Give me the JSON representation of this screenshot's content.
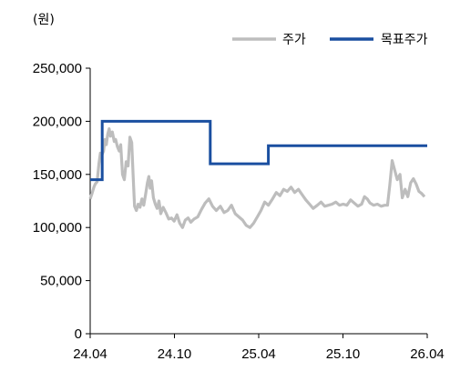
{
  "chart_data": {
    "type": "line",
    "title": "",
    "unit_label": "(원)",
    "xlabel": "",
    "ylabel": "",
    "x_ticks": [
      "24.04",
      "24.10",
      "25.04",
      "25.10",
      "26.04"
    ],
    "x_range": [
      "2024-04-01",
      "2026-04-01"
    ],
    "y_ticks": [
      "0",
      "50,000",
      "100,000",
      "150,000",
      "200,000",
      "250,000"
    ],
    "ylim": [
      0,
      250000
    ],
    "grid": false,
    "legend_position": "top-right",
    "series": [
      {
        "name": "주가",
        "color": "#bdbdbd",
        "points": [
          [
            "2024-04-01",
            127000
          ],
          [
            "2024-04-05",
            132000
          ],
          [
            "2024-04-09",
            138000
          ],
          [
            "2024-04-12",
            141000
          ],
          [
            "2024-04-16",
            143000
          ],
          [
            "2024-04-20",
            160000
          ],
          [
            "2024-04-23",
            170000
          ],
          [
            "2024-04-26",
            168000
          ],
          [
            "2024-04-30",
            172000
          ],
          [
            "2024-05-03",
            183000
          ],
          [
            "2024-05-06",
            178000
          ],
          [
            "2024-05-09",
            188000
          ],
          [
            "2024-05-12",
            193000
          ],
          [
            "2024-05-15",
            186000
          ],
          [
            "2024-05-19",
            190000
          ],
          [
            "2024-05-23",
            181000
          ],
          [
            "2024-05-26",
            183000
          ],
          [
            "2024-05-30",
            176000
          ],
          [
            "2024-06-03",
            172000
          ],
          [
            "2024-06-06",
            178000
          ],
          [
            "2024-06-10",
            150000
          ],
          [
            "2024-06-14",
            145000
          ],
          [
            "2024-06-18",
            162000
          ],
          [
            "2024-06-22",
            158000
          ],
          [
            "2024-06-26",
            185000
          ],
          [
            "2024-06-30",
            180000
          ],
          [
            "2024-07-03",
            150000
          ],
          [
            "2024-07-06",
            120000
          ],
          [
            "2024-07-10",
            116000
          ],
          [
            "2024-07-14",
            122000
          ],
          [
            "2024-07-18",
            119000
          ],
          [
            "2024-07-22",
            127000
          ],
          [
            "2024-07-26",
            121000
          ],
          [
            "2024-07-30",
            131000
          ],
          [
            "2024-08-03",
            142000
          ],
          [
            "2024-08-06",
            148000
          ],
          [
            "2024-08-09",
            137000
          ],
          [
            "2024-08-12",
            144000
          ],
          [
            "2024-08-16",
            128000
          ],
          [
            "2024-08-20",
            122000
          ],
          [
            "2024-08-24",
            118000
          ],
          [
            "2024-08-28",
            125000
          ],
          [
            "2024-09-01",
            113000
          ],
          [
            "2024-09-06",
            119000
          ],
          [
            "2024-09-12",
            114000
          ],
          [
            "2024-09-18",
            108000
          ],
          [
            "2024-09-24",
            109000
          ],
          [
            "2024-09-30",
            106000
          ],
          [
            "2024-10-06",
            112000
          ],
          [
            "2024-10-12",
            104000
          ],
          [
            "2024-10-18",
            100000
          ],
          [
            "2024-10-24",
            107000
          ],
          [
            "2024-10-30",
            109000
          ],
          [
            "2024-11-05",
            105000
          ],
          [
            "2024-11-12",
            108000
          ],
          [
            "2024-11-20",
            110000
          ],
          [
            "2024-11-28",
            117000
          ],
          [
            "2024-12-06",
            123000
          ],
          [
            "2024-12-14",
            127000
          ],
          [
            "2024-12-22",
            120000
          ],
          [
            "2024-12-30",
            116000
          ],
          [
            "2025-01-08",
            120000
          ],
          [
            "2025-01-16",
            114000
          ],
          [
            "2025-01-24",
            116000
          ],
          [
            "2025-02-01",
            121000
          ],
          [
            "2025-02-09",
            113000
          ],
          [
            "2025-02-17",
            110000
          ],
          [
            "2025-02-25",
            107000
          ],
          [
            "2025-03-05",
            102000
          ],
          [
            "2025-03-13",
            100000
          ],
          [
            "2025-03-21",
            104000
          ],
          [
            "2025-03-29",
            110000
          ],
          [
            "2025-04-06",
            116000
          ],
          [
            "2025-04-14",
            124000
          ],
          [
            "2025-04-22",
            121000
          ],
          [
            "2025-05-01",
            127000
          ],
          [
            "2025-05-09",
            133000
          ],
          [
            "2025-05-17",
            130000
          ],
          [
            "2025-05-25",
            136000
          ],
          [
            "2025-06-02",
            134000
          ],
          [
            "2025-06-10",
            138000
          ],
          [
            "2025-06-18",
            133000
          ],
          [
            "2025-06-26",
            136000
          ],
          [
            "2025-07-04",
            131000
          ],
          [
            "2025-07-12",
            126000
          ],
          [
            "2025-07-20",
            122000
          ],
          [
            "2025-07-28",
            118000
          ],
          [
            "2025-08-06",
            121000
          ],
          [
            "2025-08-14",
            124000
          ],
          [
            "2025-08-22",
            120000
          ],
          [
            "2025-08-30",
            121000
          ],
          [
            "2025-09-07",
            122000
          ],
          [
            "2025-09-15",
            124000
          ],
          [
            "2025-09-23",
            121000
          ],
          [
            "2025-10-01",
            122000
          ],
          [
            "2025-10-09",
            121000
          ],
          [
            "2025-10-17",
            126000
          ],
          [
            "2025-10-25",
            123000
          ],
          [
            "2025-11-02",
            120000
          ],
          [
            "2025-11-10",
            122000
          ],
          [
            "2025-11-16",
            129000
          ],
          [
            "2025-11-22",
            127000
          ],
          [
            "2025-11-28",
            123000
          ],
          [
            "2025-12-06",
            121000
          ],
          [
            "2025-12-14",
            122000
          ],
          [
            "2025-12-22",
            120000
          ],
          [
            "2025-12-30",
            121000
          ],
          [
            "2026-01-05",
            121000
          ],
          [
            "2026-01-10",
            140000
          ],
          [
            "2026-01-15",
            163000
          ],
          [
            "2026-01-20",
            155000
          ],
          [
            "2026-01-26",
            145000
          ],
          [
            "2026-02-01",
            150000
          ],
          [
            "2026-02-06",
            128000
          ],
          [
            "2026-02-12",
            136000
          ],
          [
            "2026-02-18",
            129000
          ],
          [
            "2026-02-24",
            142000
          ],
          [
            "2026-03-02",
            146000
          ],
          [
            "2026-03-08",
            141000
          ],
          [
            "2026-03-14",
            134000
          ],
          [
            "2026-03-20",
            132000
          ],
          [
            "2026-03-26",
            129000
          ]
        ]
      },
      {
        "name": "목표주가",
        "color": "#1a4fa0",
        "points": [
          [
            "2024-04-01",
            145000
          ],
          [
            "2024-04-27",
            145000
          ],
          [
            "2024-04-27",
            200000
          ],
          [
            "2024-12-17",
            200000
          ],
          [
            "2024-12-17",
            160000
          ],
          [
            "2025-04-22",
            160000
          ],
          [
            "2025-04-22",
            177000
          ],
          [
            "2026-04-01",
            177000
          ]
        ]
      }
    ]
  }
}
